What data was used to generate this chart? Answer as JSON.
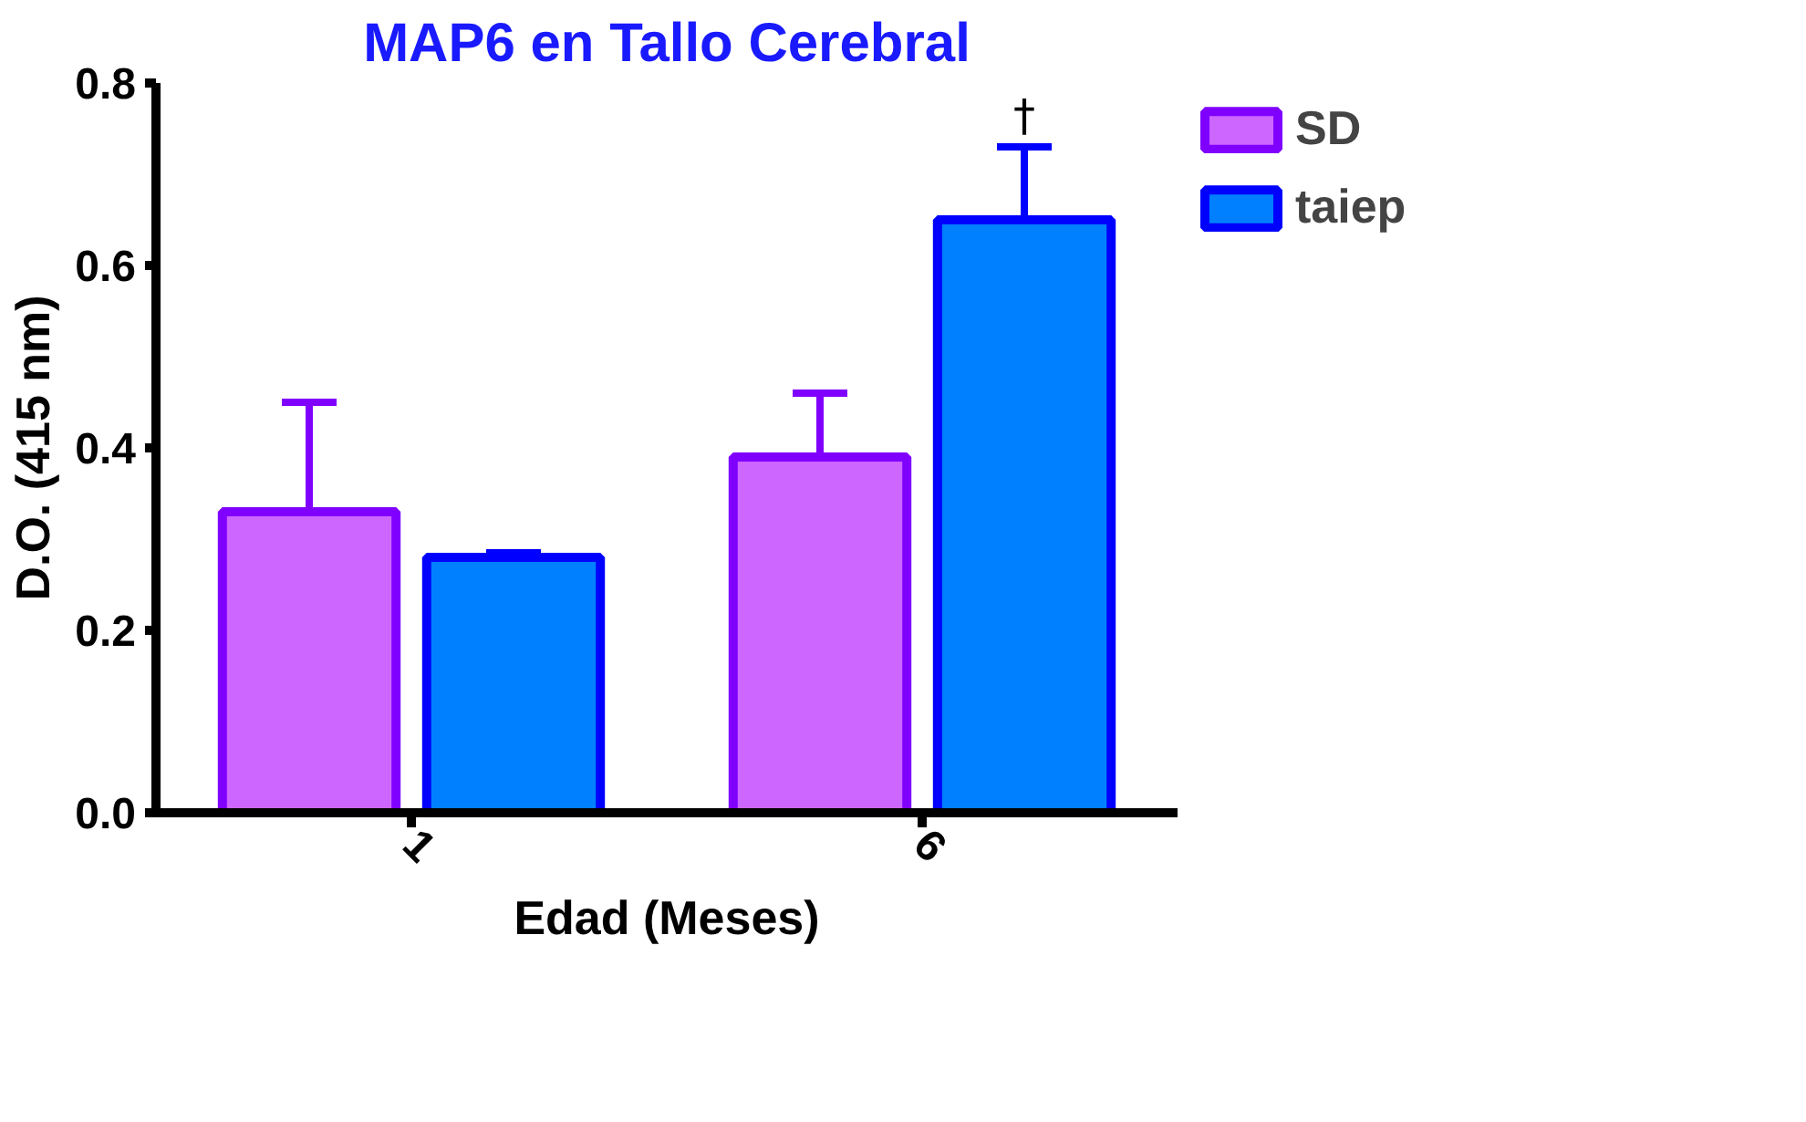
{
  "chart_data": {
    "type": "bar",
    "title": "MAP6 en Tallo Cerebral",
    "xlabel": "Edad (Meses)",
    "ylabel": "D.O. (415 nm)",
    "categories": [
      "1",
      "6"
    ],
    "series": [
      {
        "name": "SD",
        "color": "#cc66ff",
        "values": [
          0.33,
          0.39
        ],
        "errors": [
          [
            0.33,
            0.45
          ],
          [
            0.39,
            0.46
          ]
        ]
      },
      {
        "name": "taiep",
        "color": "#0080ff",
        "values": [
          0.28,
          0.65
        ],
        "errors": [
          [
            0.28,
            0.285
          ],
          [
            0.65,
            0.73
          ]
        ]
      }
    ],
    "ylim": [
      0,
      0.8
    ],
    "yticks": [
      {
        "value": 0,
        "label": "0.0"
      },
      {
        "value": 0.2,
        "label": "0.2"
      },
      {
        "value": 0.4,
        "label": "0.4"
      },
      {
        "value": 0.6,
        "label": "0.6"
      },
      {
        "value": 0.8,
        "label": "0.8"
      }
    ],
    "annotations": [
      "†"
    ],
    "grid": false,
    "legend": "top right"
  }
}
